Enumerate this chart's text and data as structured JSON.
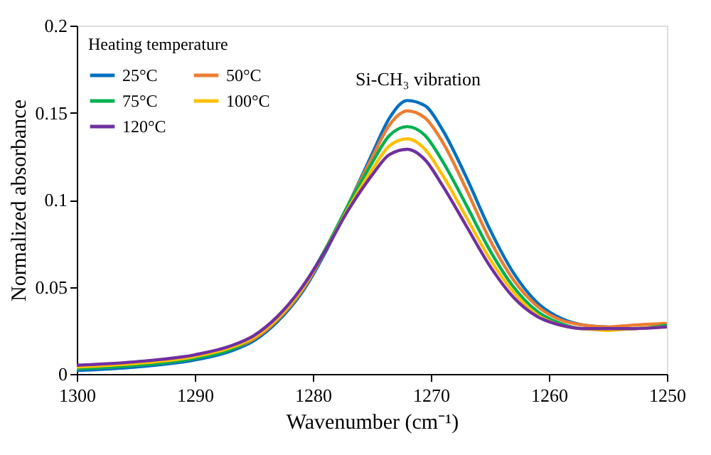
{
  "chart_data": {
    "type": "line",
    "xlabel": "Wavenumber (cm⁻¹)",
    "ylabel": "Normalized  absorbance",
    "legend_title": "Heating  temperature",
    "x": [
      1300,
      1295,
      1290,
      1287,
      1285,
      1283,
      1281,
      1279,
      1277,
      1275,
      1273.5,
      1272,
      1270.5,
      1269,
      1267,
      1265,
      1263,
      1261,
      1259,
      1257,
      1255,
      1253,
      1250
    ],
    "series": [
      {
        "name": "25°C",
        "color": "#0070c0",
        "values": [
          0.002,
          0.004,
          0.008,
          0.013,
          0.019,
          0.03,
          0.046,
          0.069,
          0.097,
          0.126,
          0.147,
          0.157,
          0.154,
          0.14,
          0.113,
          0.083,
          0.058,
          0.041,
          0.032,
          0.028,
          0.027,
          null,
          null
        ]
      },
      {
        "name": "50°C",
        "color": "#ed7d31",
        "values": [
          0.003,
          0.005,
          0.009,
          0.014,
          0.02,
          0.031,
          0.047,
          0.07,
          0.097,
          0.124,
          0.143,
          0.151,
          0.147,
          0.133,
          0.106,
          0.077,
          0.054,
          0.039,
          0.031,
          0.028,
          0.027,
          0.028,
          0.029
        ]
      },
      {
        "name": "75°C",
        "color": "#00b050",
        "values": [
          0.003,
          0.005,
          0.009,
          0.014,
          0.021,
          0.032,
          0.048,
          0.071,
          0.097,
          0.121,
          0.137,
          0.142,
          0.137,
          0.122,
          0.097,
          0.071,
          0.05,
          0.036,
          0.029,
          0.026,
          0.026,
          0.026,
          0.028
        ]
      },
      {
        "name": "100°C",
        "color": "#ffc000",
        "values": [
          0.004,
          0.006,
          0.01,
          0.015,
          0.021,
          0.032,
          0.048,
          0.07,
          0.095,
          0.117,
          0.131,
          0.135,
          0.129,
          0.114,
          0.09,
          0.066,
          0.047,
          0.034,
          0.028,
          0.026,
          0.025,
          0.026,
          0.027
        ]
      },
      {
        "name": "120°C",
        "color": "#7030a0",
        "values": [
          0.005,
          0.007,
          0.011,
          0.016,
          0.022,
          0.033,
          0.049,
          0.07,
          0.094,
          0.114,
          0.126,
          0.129,
          0.123,
          0.108,
          0.085,
          0.062,
          0.044,
          0.033,
          0.028,
          0.026,
          0.026,
          0.026,
          0.027
        ]
      }
    ],
    "xlim": [
      1300,
      1250
    ],
    "xticks": [
      1300,
      1290,
      1280,
      1270,
      1260,
      1250
    ],
    "ylim": [
      0,
      0.2
    ],
    "yticks": [
      0,
      0.05,
      0.1,
      0.15,
      0.2
    ],
    "annotations": [
      "Si-CH₃ vibration"
    ],
    "grid": false,
    "legend": "top left",
    "marker": "none",
    "line_style": "solid"
  }
}
